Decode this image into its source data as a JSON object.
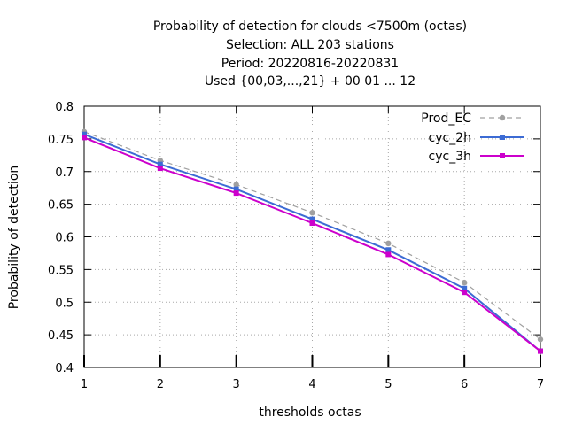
{
  "chart_data": {
    "type": "line",
    "title_lines": [
      "Probability of detection  for clouds <7500m (octas)",
      "Selection: ALL    203 stations",
      "Period: 20220816-20220831",
      "Used {00,03,...,21} + 00 01 ... 12"
    ],
    "xlabel": "thresholds octas",
    "ylabel": "Probability of detection",
    "xlim": [
      1,
      7
    ],
    "ylim": [
      0.4,
      0.8
    ],
    "x": [
      1,
      2,
      3,
      4,
      5,
      6,
      7
    ],
    "x_ticks": [
      "1",
      "2",
      "3",
      "4",
      "5",
      "6",
      "7"
    ],
    "y_ticks": [
      "0.4",
      "0.45",
      "0.5",
      "0.55",
      "0.6",
      "0.65",
      "0.7",
      "0.75",
      "0.8"
    ],
    "grid": true,
    "legend_position": "top-right",
    "series": [
      {
        "name": "Prod_EC",
        "color": "#a0a0a0",
        "line_style": "dashed",
        "values": [
          0.761,
          0.717,
          0.68,
          0.637,
          0.59,
          0.53,
          0.443
        ]
      },
      {
        "name": "cyc_2h",
        "color": "#3c6bd4",
        "line_style": "solid",
        "values": [
          0.757,
          0.711,
          0.673,
          0.627,
          0.58,
          0.521,
          0.425
        ]
      },
      {
        "name": "cyc_3h",
        "color": "#cc00cc",
        "line_style": "solid",
        "values": [
          0.752,
          0.705,
          0.667,
          0.621,
          0.573,
          0.515,
          0.425
        ]
      }
    ]
  }
}
